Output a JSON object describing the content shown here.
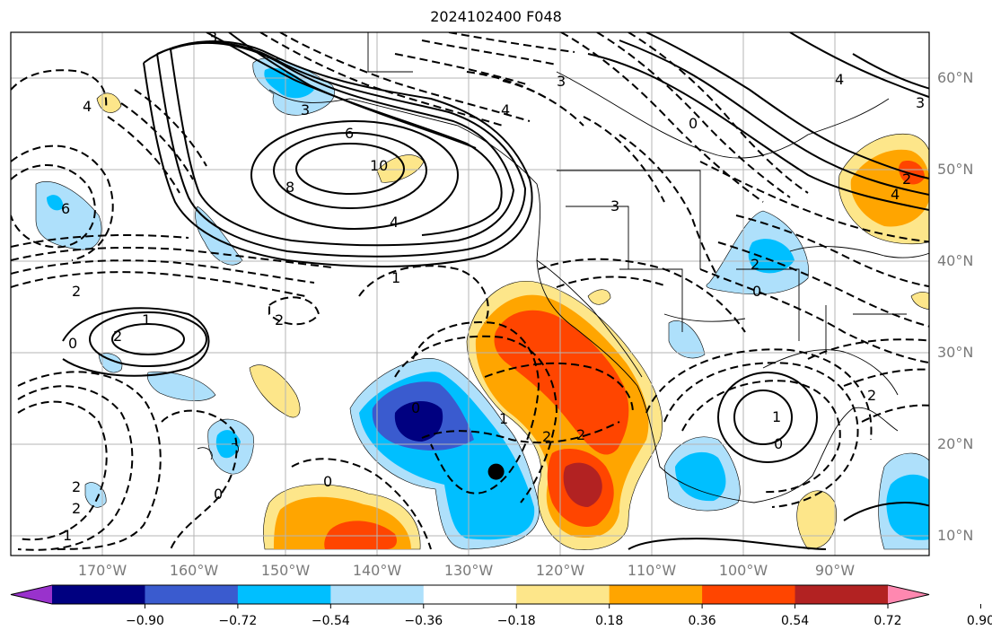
{
  "title": "2024102400 F048",
  "latitude_labels": [
    {
      "text": "60°N",
      "value": 60
    },
    {
      "text": "50°N",
      "value": 50
    },
    {
      "text": "40°N",
      "value": 40
    },
    {
      "text": "30°N",
      "value": 30
    },
    {
      "text": "20°N",
      "value": 20
    },
    {
      "text": "10°N",
      "value": 10
    }
  ],
  "longitude_labels": [
    {
      "text": "170°W",
      "value": -170
    },
    {
      "text": "160°W",
      "value": -160
    },
    {
      "text": "150°W",
      "value": -150
    },
    {
      "text": "140°W",
      "value": -140
    },
    {
      "text": "130°W",
      "value": -130
    },
    {
      "text": "120°W",
      "value": -120
    },
    {
      "text": "110°W",
      "value": -110
    },
    {
      "text": "100°W",
      "value": -100
    },
    {
      "text": "90°W",
      "value": -90
    }
  ],
  "colorbar": {
    "ticks": [
      "−0.90",
      "−0.72",
      "−0.54",
      "−0.36",
      "−0.18",
      "0.18",
      "0.36",
      "0.54",
      "0.72",
      "0.90"
    ],
    "colors": [
      "#9932cc",
      "#000080",
      "#3a5bcf",
      "#00bfff",
      "#aee0fb",
      "#ffffff",
      "#fde68a",
      "#ffa500",
      "#ff4500",
      "#b22222",
      "#ff88b0"
    ]
  },
  "contour_labels": [
    "3",
    "4",
    "3",
    "6",
    "10",
    "8",
    "4",
    "6",
    "1",
    "2",
    "2",
    "1",
    "2",
    "0",
    "0",
    "2",
    "2",
    "1",
    "0",
    "4",
    "0",
    "3",
    "4",
    "2",
    "2",
    "0",
    "1",
    "0",
    "2",
    "0",
    "2",
    "3",
    "4",
    "2",
    "1",
    "3"
  ],
  "marker": {
    "name": "black dot",
    "lon": -127,
    "lat": 17
  }
}
